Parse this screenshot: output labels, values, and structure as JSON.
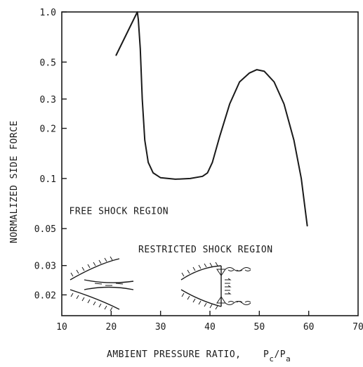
{
  "chart_data": {
    "type": "line",
    "title": "",
    "xlabel": "AMBIENT PRESSURE RATIO,",
    "xlabel_symbol": {
      "base1": "P",
      "sub1": "c",
      "sep": "/",
      "base2": "P",
      "sub2": "a"
    },
    "ylabel": "NORMALIZED SIDE FORCE",
    "xlim": [
      10,
      70
    ],
    "ylim": [
      0.015,
      1.0
    ],
    "yscale": "log",
    "grid": false,
    "x_ticks": [
      10,
      20,
      30,
      40,
      50,
      60,
      70
    ],
    "y_ticks": [
      {
        "value": 1.0,
        "label": "1.0"
      },
      {
        "value": 0.5,
        "label": "0.5"
      },
      {
        "value": 0.3,
        "label": "0.3"
      },
      {
        "value": 0.2,
        "label": "0.2"
      },
      {
        "value": 0.1,
        "label": "0.1"
      },
      {
        "value": 0.05,
        "label": "0.05"
      },
      {
        "value": 0.03,
        "label": "0.03"
      },
      {
        "value": 0.02,
        "label": "0.02"
      }
    ],
    "series": [
      {
        "x": [
          21.0,
          25.3,
          25.5,
          25.9,
          26.3,
          26.8,
          27.5,
          28.5,
          30,
          33,
          36,
          38.5,
          39.5,
          40.5,
          42,
          44,
          46,
          48,
          49.5,
          51,
          53,
          55,
          57,
          58.5,
          59.3,
          59.7
        ],
        "y": [
          0.55,
          1.0,
          0.9,
          0.6,
          0.3,
          0.17,
          0.125,
          0.108,
          0.101,
          0.099,
          0.1,
          0.103,
          0.108,
          0.125,
          0.18,
          0.28,
          0.38,
          0.43,
          0.45,
          0.44,
          0.38,
          0.28,
          0.17,
          0.1,
          0.065,
          0.052
        ]
      }
    ],
    "annotations": [
      {
        "text": "FREE SHOCK REGION",
        "x": 11.5,
        "y": 0.061
      },
      {
        "text": "RESTRICTED SHOCK REGION",
        "x": 25.5,
        "y": 0.036
      }
    ]
  }
}
